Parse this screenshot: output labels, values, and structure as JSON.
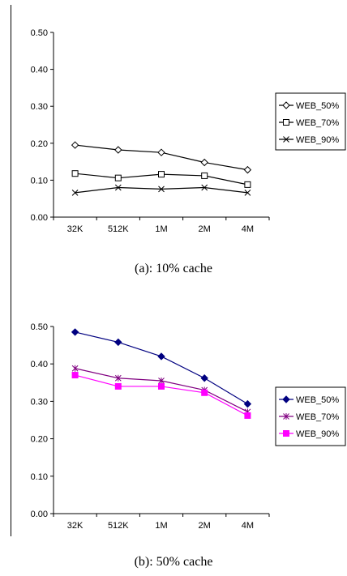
{
  "chart_data": [
    {
      "type": "line",
      "caption": "(a): 10% cache",
      "categories": [
        "32K",
        "512K",
        "1M",
        "2M",
        "4M"
      ],
      "yticks": [
        "0.00",
        "0.10",
        "0.20",
        "0.30",
        "0.40",
        "0.50"
      ],
      "ylim": [
        0,
        0.5
      ],
      "grid": false,
      "legend_position": "right",
      "series": [
        {
          "name": "WEB_50%",
          "values": [
            0.195,
            0.182,
            0.175,
            0.148,
            0.128
          ],
          "color": "#000000",
          "marker": "diamond-open"
        },
        {
          "name": "WEB_70%",
          "values": [
            0.118,
            0.106,
            0.116,
            0.112,
            0.088
          ],
          "color": "#000000",
          "marker": "square-open"
        },
        {
          "name": "WEB_90%",
          "values": [
            0.066,
            0.08,
            0.076,
            0.08,
            0.066
          ],
          "color": "#000000",
          "marker": "x"
        }
      ]
    },
    {
      "type": "line",
      "caption": "(b): 50% cache",
      "categories": [
        "32K",
        "512K",
        "1M",
        "2M",
        "4M"
      ],
      "yticks": [
        "0.00",
        "0.10",
        "0.20",
        "0.30",
        "0.40",
        "0.50"
      ],
      "ylim": [
        0,
        0.5
      ],
      "grid": false,
      "legend_position": "right",
      "series": [
        {
          "name": "WEB_50%",
          "values": [
            0.485,
            0.458,
            0.42,
            0.362,
            0.293
          ],
          "color": "#000080",
          "marker": "diamond"
        },
        {
          "name": "WEB_70%",
          "values": [
            0.388,
            0.362,
            0.355,
            0.33,
            0.272
          ],
          "color": "#800080",
          "marker": "asterisk"
        },
        {
          "name": "WEB_90%",
          "values": [
            0.37,
            0.34,
            0.34,
            0.323,
            0.262
          ],
          "color": "#ff00ff",
          "marker": "square"
        }
      ]
    }
  ]
}
